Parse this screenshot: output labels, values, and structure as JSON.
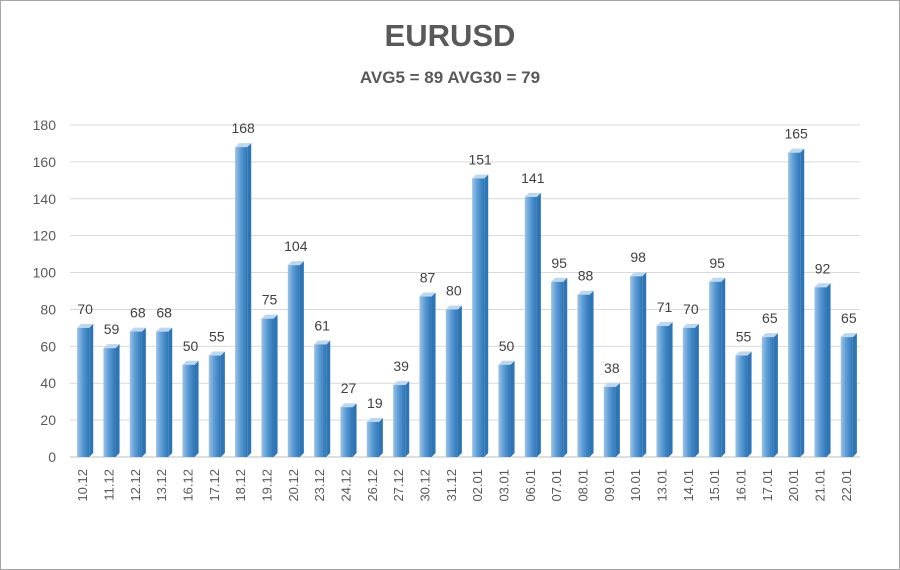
{
  "chart_data": {
    "type": "bar",
    "title": "EURUSD",
    "subtitle": "AVG5 = 89 AVG30 = 79",
    "categories": [
      "10.12",
      "11.12",
      "12.12",
      "13.12",
      "16.12",
      "17.12",
      "18.12",
      "19.12",
      "20.12",
      "23.12",
      "24.12",
      "26.12",
      "27.12",
      "30.12",
      "31.12",
      "02.01",
      "03.01",
      "06.01",
      "07.01",
      "08.01",
      "09.01",
      "10.01",
      "13.01",
      "14.01",
      "15.01",
      "16.01",
      "17.01",
      "20.01",
      "21.01",
      "22.01"
    ],
    "values": [
      70,
      59,
      68,
      68,
      50,
      55,
      168,
      75,
      104,
      61,
      27,
      19,
      39,
      87,
      80,
      151,
      50,
      141,
      95,
      88,
      38,
      98,
      71,
      70,
      95,
      55,
      65,
      165,
      92,
      65
    ],
    "ylim": [
      0,
      180
    ],
    "yticks": [
      0,
      20,
      40,
      60,
      80,
      100,
      120,
      140,
      160,
      180
    ],
    "grid": true,
    "bar_color": "#5b9bd5",
    "bar_dark_color": "#2e75b6"
  }
}
